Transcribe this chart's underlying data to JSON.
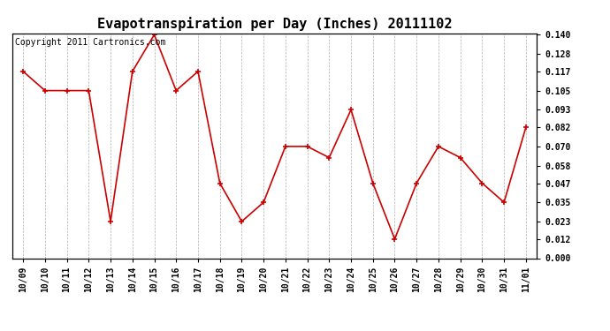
{
  "title": "Evapotranspiration per Day (Inches) 20111102",
  "copyright_text": "Copyright 2011 Cartronics.com",
  "x_labels": [
    "10/09",
    "10/10",
    "10/11",
    "10/12",
    "10/13",
    "10/14",
    "10/15",
    "10/16",
    "10/17",
    "10/18",
    "10/19",
    "10/20",
    "10/21",
    "10/22",
    "10/23",
    "10/24",
    "10/25",
    "10/26",
    "10/27",
    "10/28",
    "10/29",
    "10/30",
    "10/31",
    "11/01"
  ],
  "y_values": [
    0.117,
    0.105,
    0.105,
    0.105,
    0.023,
    0.117,
    0.14,
    0.105,
    0.117,
    0.047,
    0.023,
    0.035,
    0.07,
    0.07,
    0.063,
    0.093,
    0.047,
    0.012,
    0.047,
    0.07,
    0.063,
    0.047,
    0.035,
    0.082
  ],
  "y_ticks": [
    0.0,
    0.012,
    0.023,
    0.035,
    0.047,
    0.058,
    0.07,
    0.082,
    0.093,
    0.105,
    0.117,
    0.128,
    0.14
  ],
  "ylim": [
    0.0,
    0.14
  ],
  "line_color": "#cc0000",
  "marker_color": "#cc0000",
  "background_color": "#ffffff",
  "grid_color": "#999999",
  "title_fontsize": 11,
  "copyright_fontsize": 7,
  "tick_fontsize": 7,
  "ytick_fontsize": 7
}
